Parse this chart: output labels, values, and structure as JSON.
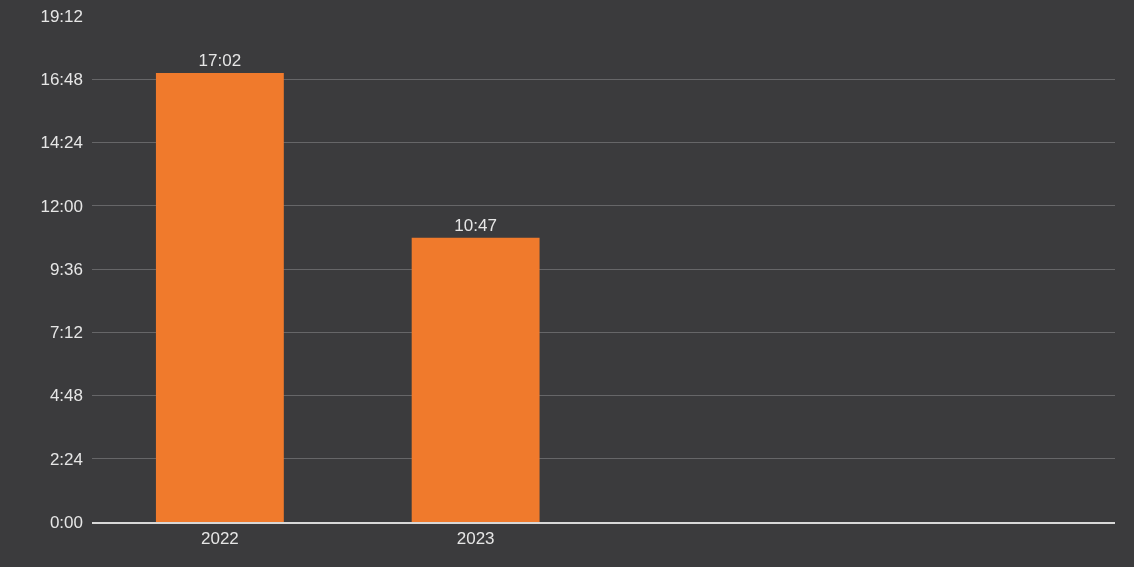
{
  "chart_data": {
    "type": "bar",
    "categories": [
      "2022",
      "2023",
      null,
      null
    ],
    "values": [
      17.033,
      10.783,
      null,
      null
    ],
    "value_labels": [
      "17:02",
      "10:47",
      null,
      null
    ],
    "color": "#f07a2c",
    "ylim": [
      0,
      19.2
    ],
    "yticks": [
      {
        "value": 0,
        "label": "0:00"
      },
      {
        "value": 2.4,
        "label": "2:24"
      },
      {
        "value": 4.8,
        "label": "4:48"
      },
      {
        "value": 7.2,
        "label": "7:12"
      },
      {
        "value": 9.6,
        "label": "9:36"
      },
      {
        "value": 12,
        "label": "12:00"
      },
      {
        "value": 14.4,
        "label": "14:24"
      },
      {
        "value": 16.8,
        "label": "16:48"
      },
      {
        "value": 19.2,
        "label": "19:12"
      }
    ],
    "grid": "y"
  }
}
